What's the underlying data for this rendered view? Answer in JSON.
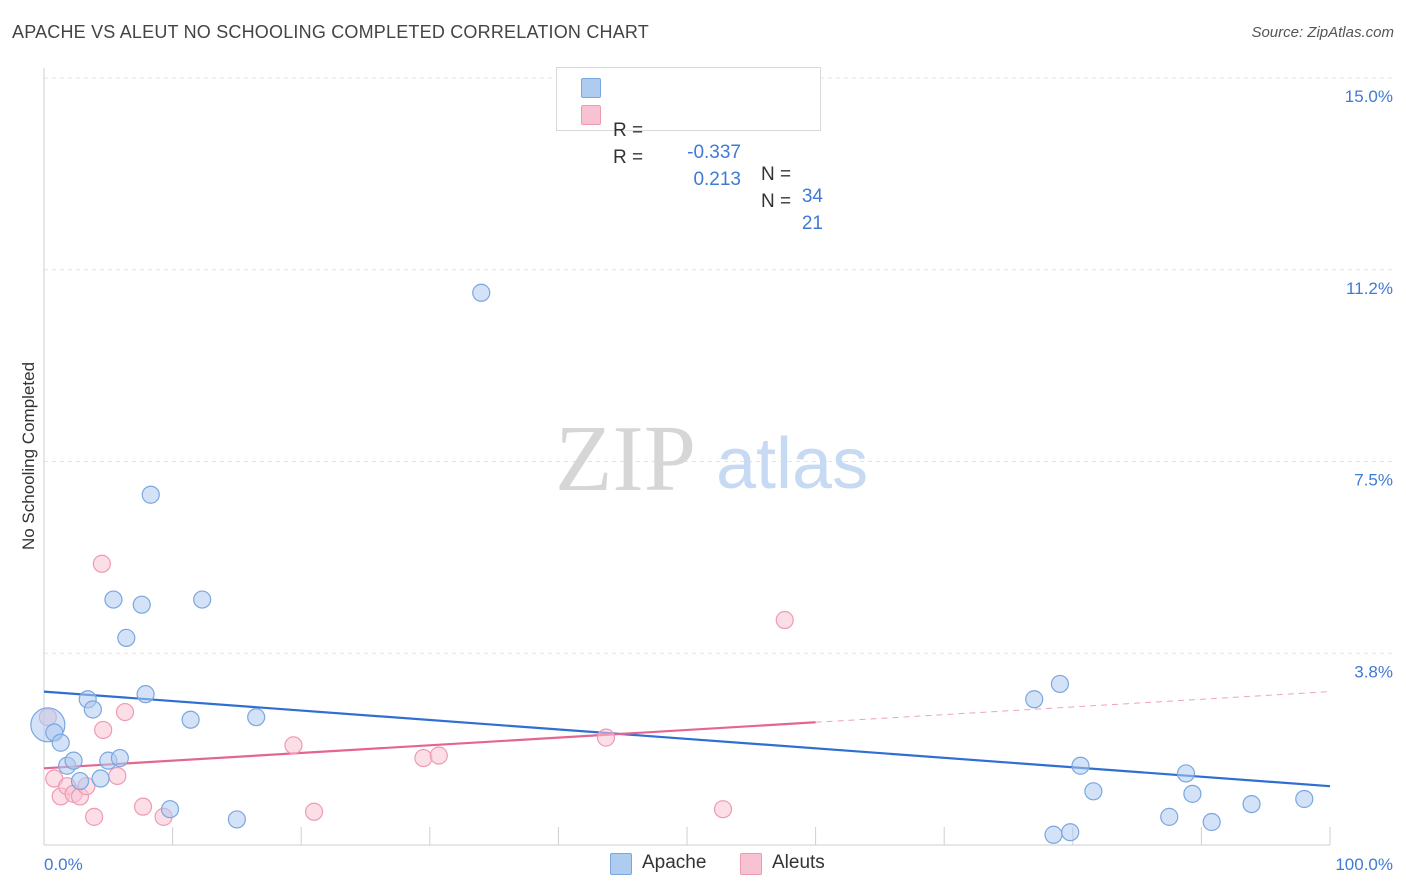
{
  "header": {
    "title": "APACHE VS ALEUT NO SCHOOLING COMPLETED CORRELATION CHART",
    "source": "Source: ZipAtlas.com"
  },
  "watermark": {
    "zip": "ZIP",
    "atlas": "atlas"
  },
  "legend": {
    "rows": [
      {
        "r_label": "R =",
        "r_value": "-0.337",
        "n_label": "N =",
        "n_value": "34",
        "color": "#aecbf0",
        "stroke": "#7aa7e0"
      },
      {
        "r_label": "R =",
        "r_value": "0.213",
        "n_label": "N =",
        "n_value": "21",
        "color": "#f7c3d2",
        "stroke": "#ef9ab3"
      }
    ]
  },
  "bottom_legend": [
    {
      "label": "Apache",
      "color": "#aecbf0",
      "stroke": "#7aa7e0"
    },
    {
      "label": "Aleuts",
      "color": "#f7c3d2",
      "stroke": "#ef9ab3"
    }
  ],
  "chart_data": {
    "type": "scatter",
    "title": "APACHE VS ALEUT NO SCHOOLING COMPLETED CORRELATION CHART",
    "xlabel": "",
    "ylabel": "No Schooling Completed",
    "xlim": [
      0,
      100
    ],
    "ylim": [
      0,
      15
    ],
    "x_tick_labels": [
      "0.0%",
      "100.0%"
    ],
    "y_ticks": [
      3.75,
      7.5,
      11.25,
      15.0
    ],
    "y_tick_labels": [
      "3.8%",
      "7.5%",
      "11.2%",
      "15.0%"
    ],
    "grid": true,
    "legend_position": "top-center",
    "series": [
      {
        "name": "Apache",
        "color": "#aecbf0",
        "stroke": "#7aa7e0",
        "line_color": "#2f6fd1",
        "points": [
          {
            "x": 0.3,
            "y": 2.35,
            "big": true
          },
          {
            "x": 0.8,
            "y": 2.2
          },
          {
            "x": 1.3,
            "y": 2.0
          },
          {
            "x": 1.8,
            "y": 1.55
          },
          {
            "x": 2.3,
            "y": 1.65
          },
          {
            "x": 2.8,
            "y": 1.25
          },
          {
            "x": 3.4,
            "y": 2.85
          },
          {
            "x": 3.8,
            "y": 2.65
          },
          {
            "x": 4.4,
            "y": 1.3
          },
          {
            "x": 5.0,
            "y": 1.65
          },
          {
            "x": 5.4,
            "y": 4.8
          },
          {
            "x": 5.9,
            "y": 1.7
          },
          {
            "x": 6.4,
            "y": 4.05
          },
          {
            "x": 7.6,
            "y": 4.7
          },
          {
            "x": 7.9,
            "y": 2.95
          },
          {
            "x": 8.3,
            "y": 6.85
          },
          {
            "x": 9.8,
            "y": 0.7
          },
          {
            "x": 11.4,
            "y": 2.45
          },
          {
            "x": 12.3,
            "y": 4.8
          },
          {
            "x": 15.0,
            "y": 0.5
          },
          {
            "x": 16.5,
            "y": 2.5
          },
          {
            "x": 34.0,
            "y": 10.8
          },
          {
            "x": 77.0,
            "y": 2.85
          },
          {
            "x": 79.0,
            "y": 3.15
          },
          {
            "x": 78.5,
            "y": 0.2
          },
          {
            "x": 79.8,
            "y": 0.25
          },
          {
            "x": 80.6,
            "y": 1.55
          },
          {
            "x": 81.6,
            "y": 1.05
          },
          {
            "x": 87.5,
            "y": 0.55
          },
          {
            "x": 88.8,
            "y": 1.4
          },
          {
            "x": 89.3,
            "y": 1.0
          },
          {
            "x": 90.8,
            "y": 0.45
          },
          {
            "x": 93.9,
            "y": 0.8
          },
          {
            "x": 98.0,
            "y": 0.9
          }
        ],
        "trend": {
          "x1": 0,
          "y1": 3.0,
          "x2": 100,
          "y2": 1.15,
          "dashed_from": null
        }
      },
      {
        "name": "Aleuts",
        "color": "#f7c3d2",
        "stroke": "#ef9ab3",
        "line_color": "#e4668f",
        "points": [
          {
            "x": 0.3,
            "y": 2.5
          },
          {
            "x": 0.8,
            "y": 1.3
          },
          {
            "x": 1.3,
            "y": 0.95
          },
          {
            "x": 1.8,
            "y": 1.15
          },
          {
            "x": 2.3,
            "y": 1.0
          },
          {
            "x": 2.8,
            "y": 0.95
          },
          {
            "x": 3.3,
            "y": 1.15
          },
          {
            "x": 3.9,
            "y": 0.55
          },
          {
            "x": 4.5,
            "y": 5.5
          },
          {
            "x": 4.6,
            "y": 2.25
          },
          {
            "x": 5.7,
            "y": 1.35
          },
          {
            "x": 6.3,
            "y": 2.6
          },
          {
            "x": 7.7,
            "y": 0.75
          },
          {
            "x": 9.3,
            "y": 0.55
          },
          {
            "x": 19.4,
            "y": 1.95
          },
          {
            "x": 21.0,
            "y": 0.65
          },
          {
            "x": 29.5,
            "y": 1.7
          },
          {
            "x": 30.7,
            "y": 1.75
          },
          {
            "x": 43.7,
            "y": 2.1
          },
          {
            "x": 52.8,
            "y": 0.7
          },
          {
            "x": 57.6,
            "y": 4.4
          }
        ],
        "trend": {
          "x1": 0,
          "y1": 1.5,
          "x2": 100,
          "y2": 3.0,
          "dashed_from": 60
        }
      }
    ]
  }
}
